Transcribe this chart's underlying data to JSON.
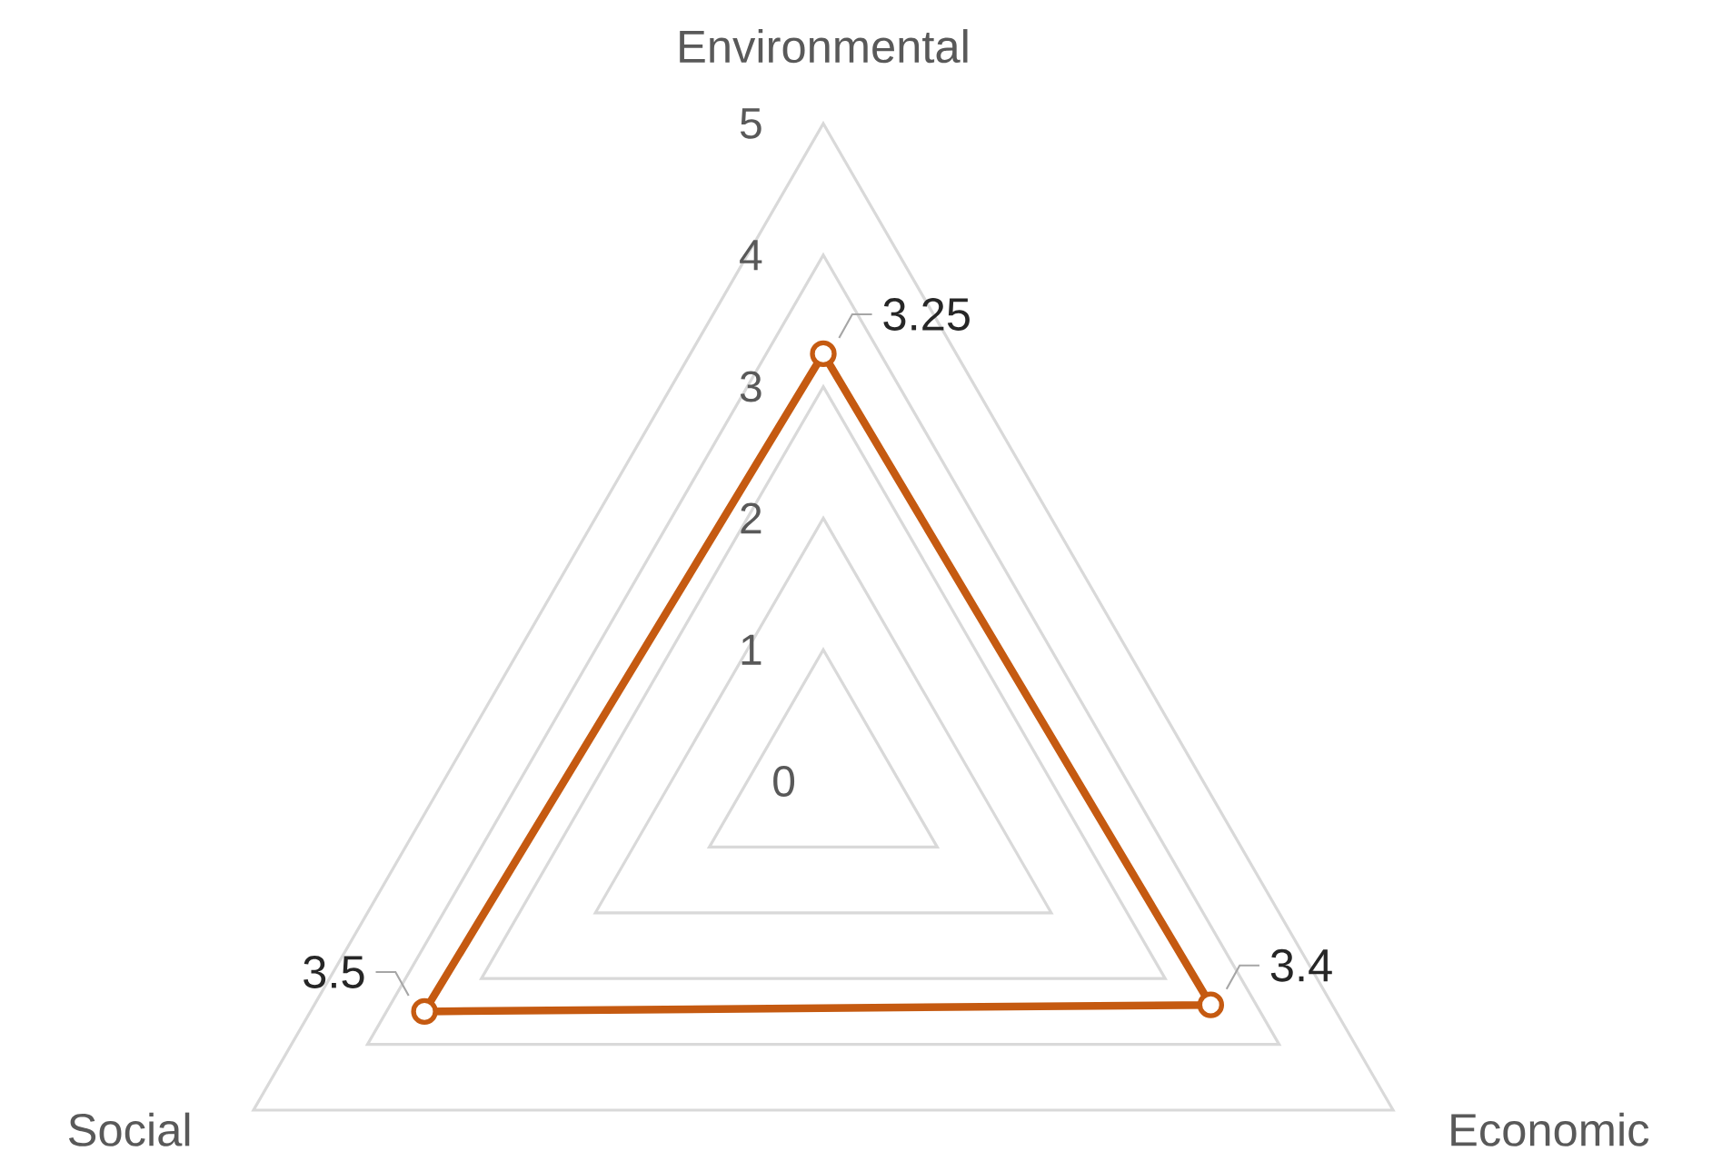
{
  "chart_data": {
    "type": "radar",
    "categories": [
      "Environmental",
      "Economic",
      "Social"
    ],
    "series": [
      {
        "color": "#c55a11",
        "values": [
          3.25,
          3.4,
          3.5
        ],
        "value_labels": [
          "3.25",
          "3.4",
          "3.5"
        ]
      }
    ],
    "ylim": [
      0,
      5
    ],
    "yticks": [
      {
        "value": 0,
        "label": "0"
      },
      {
        "value": 1,
        "label": "1"
      },
      {
        "value": 2,
        "label": "2"
      },
      {
        "value": 3,
        "label": "3"
      },
      {
        "value": 4,
        "label": "4"
      },
      {
        "value": 5,
        "label": "5"
      }
    ],
    "data_labels": true,
    "marker": "circle",
    "grid": true
  }
}
